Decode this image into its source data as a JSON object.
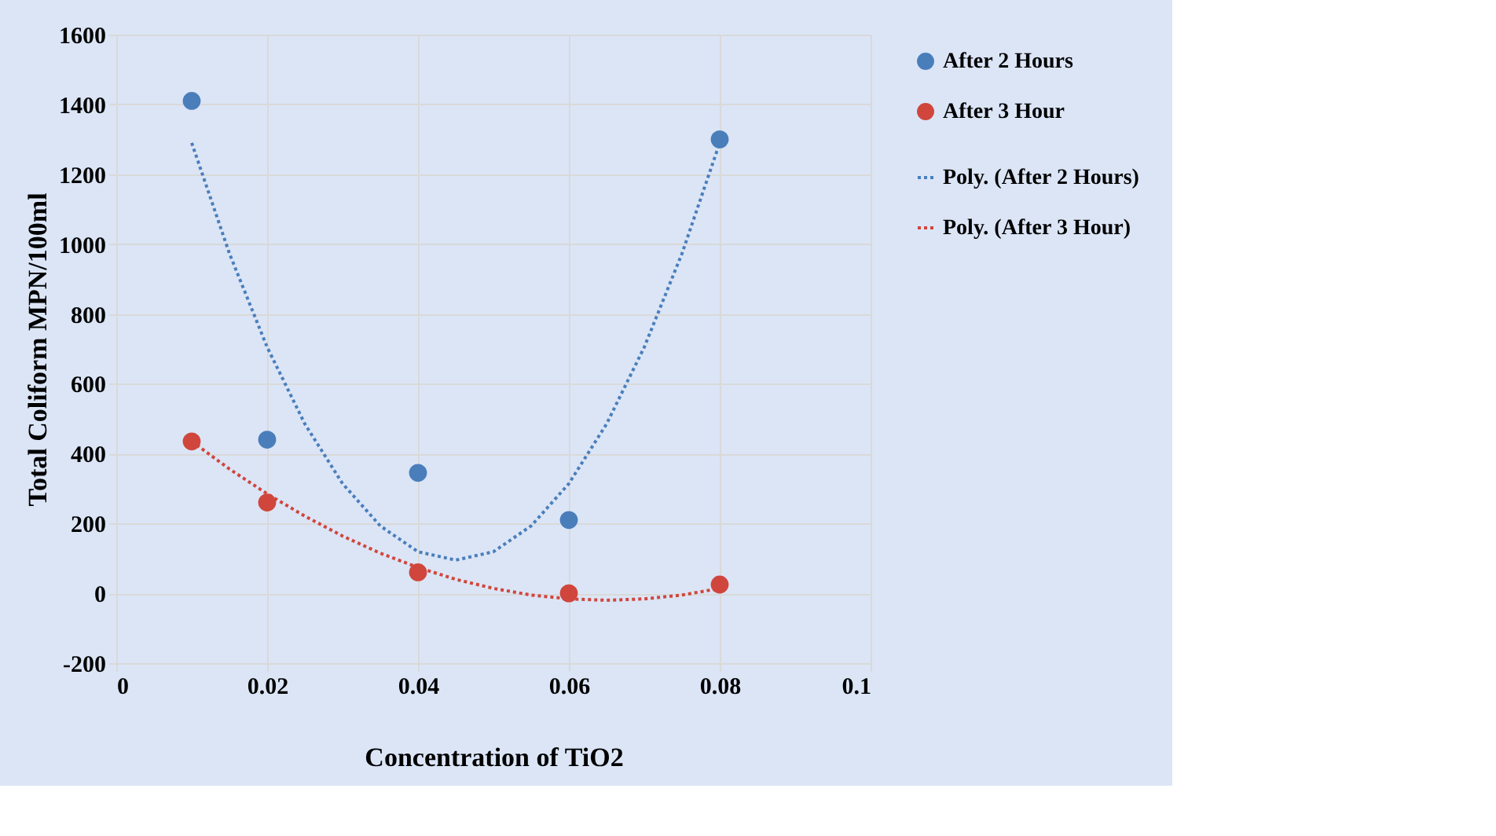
{
  "chart_data": {
    "type": "scatter",
    "xlabel": "Concentration of TiO2",
    "ylabel": "Total Coliform MPN/100ml",
    "xlim": [
      0,
      0.1
    ],
    "xticks": [
      0,
      0.02,
      0.04,
      0.06,
      0.08,
      0.1
    ],
    "ylim": [
      -200,
      1600
    ],
    "yticks": [
      -200,
      0,
      200,
      400,
      600,
      800,
      1000,
      1200,
      1400,
      1600
    ],
    "grid": true,
    "legend": "right",
    "x": [
      0.01,
      0.02,
      0.04,
      0.06,
      0.08
    ],
    "series": [
      {
        "name": "After 2 Hours",
        "type": "scatter",
        "marker": "circle",
        "color": "#4a7ebb",
        "values": [
          1410,
          440,
          345,
          210,
          1300
        ]
      },
      {
        "name": "After 3 Hour",
        "type": "scatter",
        "marker": "circle",
        "color": "#d0463c",
        "values": [
          435,
          260,
          60,
          0,
          25
        ]
      },
      {
        "name": "Poly. (After 2 Hours)",
        "type": "line",
        "line_style": "dotted",
        "marker": "none",
        "color": "#4a7ebb",
        "x": [
          0.01,
          0.015,
          0.02,
          0.025,
          0.03,
          0.035,
          0.04,
          0.045,
          0.05,
          0.055,
          0.06,
          0.065,
          0.07,
          0.075,
          0.08
        ],
        "values": [
          1290,
          973,
          705,
          485,
          314,
          193,
          119,
          95,
          119,
          193,
          314,
          485,
          705,
          973,
          1290
        ]
      },
      {
        "name": "Poly. (After 3 Hour)",
        "type": "line",
        "line_style": "dotted",
        "marker": "none",
        "color": "#d0463c",
        "x": [
          0.01,
          0.015,
          0.02,
          0.025,
          0.03,
          0.035,
          0.04,
          0.045,
          0.05,
          0.055,
          0.06,
          0.065,
          0.07,
          0.075,
          0.08
        ],
        "values": [
          435,
          356,
          285,
          221,
          164,
          115,
          74,
          40,
          14,
          -5,
          -16,
          -20,
          -16,
          -5,
          14
        ]
      }
    ]
  }
}
